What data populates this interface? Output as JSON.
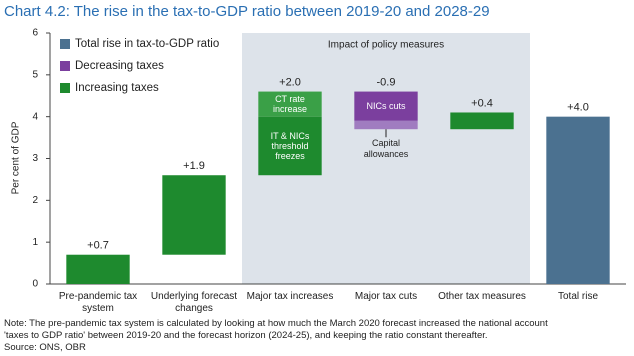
{
  "chart_data": {
    "type": "waterfall",
    "title": "Chart 4.2: The rise in the tax-to-GDP ratio between 2019-20 and 2028-29",
    "y_label": "Per cent of GDP",
    "categories": [
      "Pre-pandemic tax system",
      "Underlying forecast changes",
      "Major tax increases",
      "Major tax cuts",
      "Other tax measures",
      "Total rise"
    ],
    "values": [
      0.7,
      1.9,
      2.0,
      -0.9,
      0.4,
      4.0
    ],
    "value_labels": [
      "+0.7",
      "+1.9",
      "+2.0",
      "-0.9",
      "+0.4",
      "+4.0"
    ],
    "measure": [
      "relative",
      "relative",
      "relative",
      "relative",
      "relative",
      "total"
    ],
    "colors": [
      "#1e8a2e",
      "#1e8a2e",
      "#1e8a2e",
      "#7b3f9e",
      "#1e8a2e",
      "#4b7190"
    ],
    "segments": [
      null,
      null,
      [
        {
          "label": "IT & NICs threshold freezes",
          "value": 1.4,
          "color": "#1e8a2e"
        },
        {
          "label": "CT rate increase",
          "value": 0.6,
          "color": "#3aa047"
        }
      ],
      [
        {
          "label": "NICs cuts",
          "value": -0.7,
          "color": "#7b3f9e"
        },
        {
          "label": "Capital allowances",
          "value": -0.2,
          "color": "#a07cc0",
          "label_position": "below"
        }
      ],
      null,
      null
    ],
    "legend": [
      {
        "name": "Total rise in tax-to-GDP ratio",
        "color": "#4b7190"
      },
      {
        "name": "Decreasing taxes",
        "color": "#7b3f9e"
      },
      {
        "name": "Increasing taxes",
        "color": "#1e8a2e"
      }
    ],
    "shaded_region": {
      "label": "Impact of policy measures",
      "from": "Major tax increases",
      "to": "Other tax measures",
      "color": "#dde3ea"
    },
    "ylim": [
      0,
      6
    ],
    "yticks": [
      0,
      1,
      2,
      3,
      4,
      5,
      6
    ],
    "grid": false,
    "notes": [
      "Note: The pre-pandemic tax system is calculated by looking at how much the March 2020 forecast increased the national account",
      "'taxes to GDP ratio' between 2019-20 and the forecast horizon (2024-25), and keeping the ratio constant thereafter.",
      "Source: ONS, OBR"
    ]
  }
}
